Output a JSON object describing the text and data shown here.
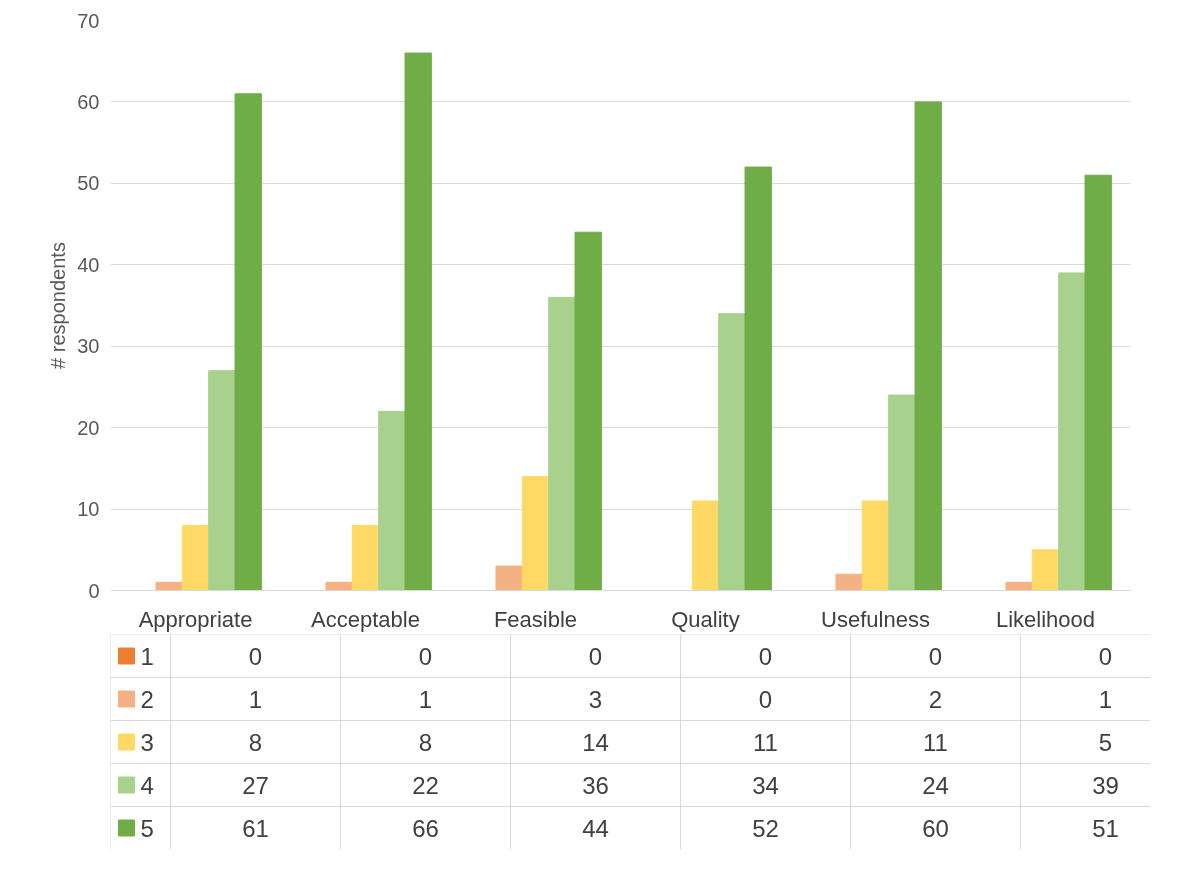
{
  "chart_data": {
    "type": "bar",
    "ylabel": "# respondents",
    "categories": [
      "Appropriate",
      "Acceptable",
      "Feasible",
      "Quality",
      "Usefulness",
      "Likelihood"
    ],
    "series": [
      {
        "name": "1",
        "color": "#ed7d31",
        "values": [
          0,
          0,
          0,
          0,
          0,
          0
        ]
      },
      {
        "name": "2",
        "color": "#f4b183",
        "values": [
          1,
          1,
          3,
          0,
          2,
          1
        ]
      },
      {
        "name": "3",
        "color": "#ffd966",
        "values": [
          8,
          8,
          14,
          11,
          11,
          5
        ]
      },
      {
        "name": "4",
        "color": "#a9d18e",
        "values": [
          27,
          22,
          36,
          34,
          24,
          39
        ]
      },
      {
        "name": "5",
        "color": "#70ad47",
        "values": [
          61,
          66,
          44,
          52,
          60,
          51
        ]
      }
    ],
    "ylim": [
      0,
      70
    ],
    "yticks": [
      0,
      10,
      20,
      30,
      40,
      50,
      60,
      70
    ],
    "grid": "y",
    "legend": "bottom",
    "data_labels": true
  }
}
